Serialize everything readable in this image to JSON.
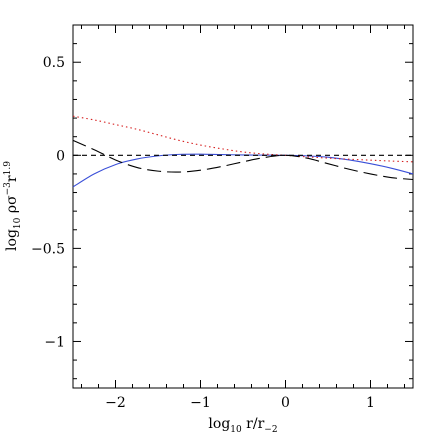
{
  "chart_data": {
    "type": "line",
    "title": "",
    "xlabel": {
      "base": "log",
      "sub": "10",
      "rest": " r/r",
      "rest_sub": "−2"
    },
    "ylabel": {
      "base": "log",
      "sub": "10",
      "rest": " ρσ",
      "sup1": "−3",
      "mid": "r",
      "sup2": "1.9"
    },
    "xlim": [
      -2.5,
      1.5
    ],
    "ylim": [
      -1.25,
      0.7
    ],
    "grid": false,
    "legend": "none",
    "xticks": [
      {
        "value": -2,
        "label": "−2"
      },
      {
        "value": -1,
        "label": "−1"
      },
      {
        "value": 0,
        "label": "0"
      },
      {
        "value": 1,
        "label": "1"
      }
    ],
    "yticks": [
      {
        "value": 0.5,
        "label": "0.5"
      },
      {
        "value": 0,
        "label": "0"
      },
      {
        "value": -0.5,
        "label": "−0.5"
      },
      {
        "value": -1,
        "label": "−1"
      }
    ],
    "series": [
      {
        "color": "#3a4fd8",
        "style": "solid",
        "x": [
          -2.5,
          -2.25,
          -2.0,
          -1.75,
          -1.5,
          -1.25,
          -1.0,
          -0.75,
          -0.5,
          -0.25,
          0.0,
          0.25,
          0.5,
          0.75,
          1.0,
          1.25,
          1.5
        ],
        "y": [
          -0.17,
          -0.1,
          -0.05,
          -0.02,
          -0.003,
          0.005,
          0.006,
          0.004,
          0.002,
          0.001,
          0.0,
          -0.003,
          -0.01,
          -0.025,
          -0.045,
          -0.07,
          -0.1
        ]
      },
      {
        "color": "#d62020",
        "style": "dotted",
        "x": [
          -2.5,
          -2.25,
          -2.0,
          -1.75,
          -1.5,
          -1.25,
          -1.0,
          -0.75,
          -0.5,
          -0.25,
          0.0,
          0.25,
          0.5,
          0.75,
          1.0,
          1.25,
          1.5
        ],
        "y": [
          0.21,
          0.19,
          0.165,
          0.14,
          0.11,
          0.08,
          0.055,
          0.035,
          0.018,
          0.007,
          0.0,
          -0.008,
          -0.015,
          -0.021,
          -0.026,
          -0.031,
          -0.035
        ]
      },
      {
        "color": "#000000",
        "style": "long-dashed",
        "x": [
          -2.5,
          -2.25,
          -2.0,
          -1.75,
          -1.5,
          -1.25,
          -1.0,
          -0.75,
          -0.5,
          -0.25,
          0.0,
          0.25,
          0.5,
          0.75,
          1.0,
          1.25,
          1.5
        ],
        "y": [
          0.08,
          0.03,
          -0.025,
          -0.065,
          -0.085,
          -0.09,
          -0.08,
          -0.06,
          -0.035,
          -0.012,
          0.0,
          -0.015,
          -0.045,
          -0.075,
          -0.1,
          -0.12,
          -0.13
        ]
      },
      {
        "color": "#000000",
        "style": "short-dashed",
        "x": [
          -2.5,
          1.5
        ],
        "y": [
          0.0,
          0.0
        ]
      }
    ]
  }
}
